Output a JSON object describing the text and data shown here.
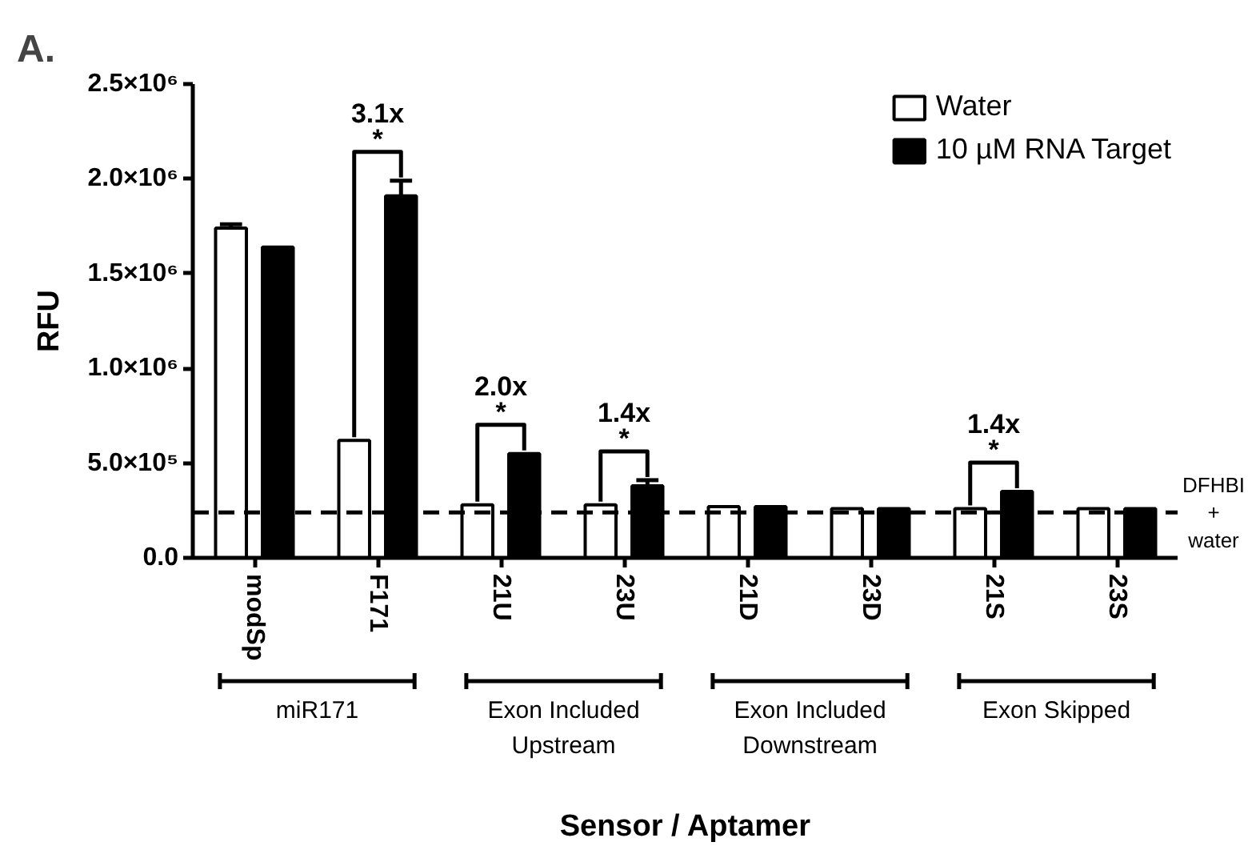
{
  "chart_data": {
    "type": "bar",
    "title": "A.",
    "xlabel": "Sensor / Aptamer",
    "ylabel": "RFU",
    "categories": [
      "modSp",
      "F171",
      "21U",
      "23U",
      "21D",
      "23D",
      "21S",
      "23S"
    ],
    "series": [
      {
        "name": "Water",
        "color": "#ffffff",
        "values": [
          1740000,
          620000,
          280000,
          280000,
          270000,
          260000,
          260000,
          260000
        ],
        "errors": [
          [
            1740000,
            1760000
          ],
          null,
          null,
          null,
          null,
          null,
          null,
          null
        ]
      },
      {
        "name": "10 µM RNA Target",
        "color": "#000000",
        "values": [
          1640000,
          1910000,
          550000,
          380000,
          270000,
          260000,
          350000,
          260000
        ],
        "errors": [
          null,
          [
            1910000,
            1990000
          ],
          null,
          [
            380000,
            410000
          ],
          null,
          null,
          null,
          null
        ]
      }
    ],
    "ylim": [
      0,
      2500000
    ],
    "yticks": [
      {
        "value": 0,
        "label": "0.0"
      },
      {
        "value": 500000,
        "label": "5.0×10⁵"
      },
      {
        "value": 1000000,
        "label": "1.0×10⁶"
      },
      {
        "value": 1500000,
        "label": "1.5×10⁶"
      },
      {
        "value": 2000000,
        "label": "2.0×10⁶"
      },
      {
        "value": 2500000,
        "label": "2.5×10⁶"
      }
    ],
    "legend": "top right",
    "ref_lines": [
      {
        "axis": "y",
        "value": 240000,
        "label": "DFHBI + water",
        "line_style": "dashed"
      }
    ],
    "annotations": [
      {
        "text": "3.1x",
        "x": "F171",
        "y": 1910000
      },
      {
        "text": "*",
        "x": "F171",
        "y": 1910000
      },
      {
        "text": "2.0x",
        "x": "21U",
        "y": 550000
      },
      {
        "text": "*",
        "x": "21U",
        "y": 550000
      },
      {
        "text": "1.4x",
        "x": "23U",
        "y": 380000
      },
      {
        "text": "*",
        "x": "23U",
        "y": 380000
      },
      {
        "text": "1.4x",
        "x": "21S",
        "y": 350000
      },
      {
        "text": "*",
        "x": "21S",
        "y": 350000
      },
      "miR171",
      "Exon Included Upstream",
      "Exon Included Downstream",
      "Exon Skipped"
    ]
  }
}
